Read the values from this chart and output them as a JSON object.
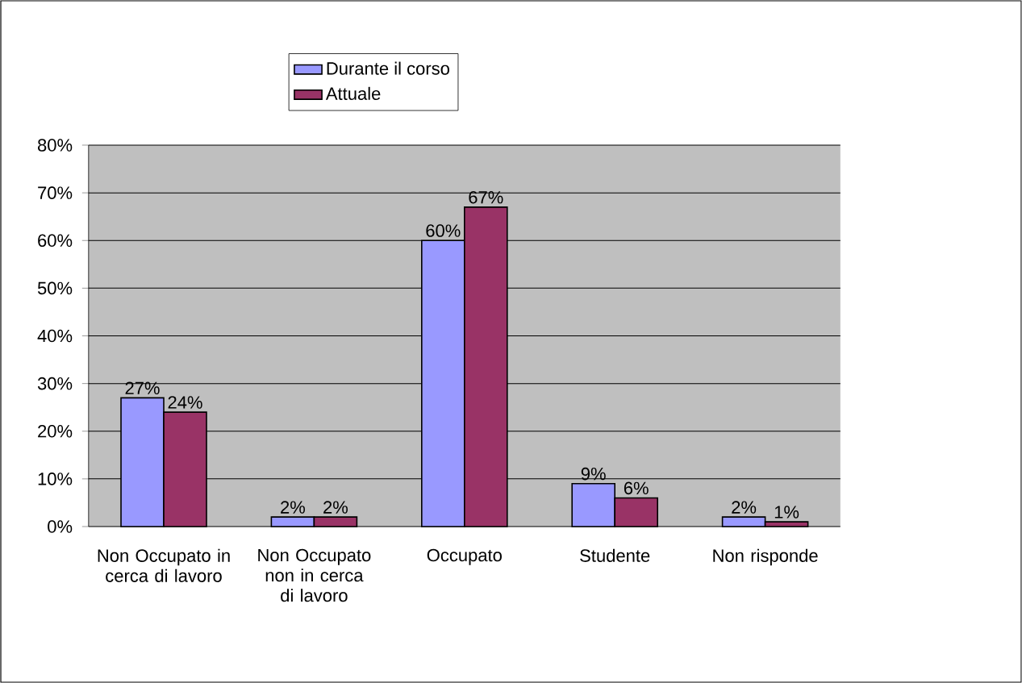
{
  "chart_data": {
    "type": "bar",
    "categories": [
      "Non Occupato in cerca di lavoro",
      "Non Occupato non in cerca di lavoro",
      "Occupato",
      "Studente",
      "Non risponde"
    ],
    "series": [
      {
        "name": "Durante il corso",
        "color": "#9999ff",
        "values": [
          27,
          2,
          60,
          9,
          2
        ],
        "value_labels": [
          "27%",
          "2%",
          "60%",
          "9%",
          "2%"
        ]
      },
      {
        "name": "Attuale",
        "color": "#993366",
        "values": [
          24,
          2,
          67,
          6,
          1
        ],
        "value_labels": [
          "24%",
          "2%",
          "67%",
          "6%",
          "1%"
        ]
      }
    ],
    "ylim": [
      0,
      80
    ],
    "yticks": [
      {
        "value": 0,
        "label": "0%"
      },
      {
        "value": 10,
        "label": "10%"
      },
      {
        "value": 20,
        "label": "20%"
      },
      {
        "value": 30,
        "label": "30%"
      },
      {
        "value": 40,
        "label": "40%"
      },
      {
        "value": 50,
        "label": "50%"
      },
      {
        "value": 60,
        "label": "60%"
      },
      {
        "value": 70,
        "label": "70%"
      },
      {
        "value": 80,
        "label": "80%"
      }
    ],
    "grid": "y",
    "legend": "top"
  }
}
